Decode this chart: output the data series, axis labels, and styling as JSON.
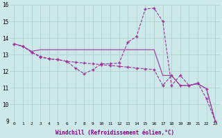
{
  "xlabel": "Windchill (Refroidissement éolien,°C)",
  "background_color": "#cce8e8",
  "grid_color": "#aacccc",
  "line_color": "#993399",
  "xlim": [
    -0.5,
    23.5
  ],
  "ylim": [
    9,
    16
  ],
  "yticks": [
    9,
    10,
    11,
    12,
    13,
    14,
    15,
    16
  ],
  "xticks": [
    0,
    1,
    2,
    3,
    4,
    5,
    6,
    7,
    8,
    9,
    10,
    11,
    12,
    13,
    14,
    15,
    16,
    17,
    18,
    19,
    20,
    21,
    22,
    23
  ],
  "line1_x": [
    0,
    1,
    2,
    3,
    4,
    5,
    6,
    7,
    8,
    9,
    10,
    11,
    12,
    13,
    14,
    15,
    16,
    17,
    18,
    19,
    20,
    21,
    22,
    23
  ],
  "line1_y": [
    13.65,
    13.5,
    13.15,
    12.9,
    12.75,
    12.7,
    12.6,
    12.2,
    11.85,
    12.1,
    12.45,
    12.45,
    12.5,
    13.75,
    14.1,
    15.75,
    15.8,
    15.0,
    11.15,
    11.75,
    11.15,
    11.3,
    10.35,
    9.0
  ],
  "line2_x": [
    0,
    1,
    2,
    3,
    4,
    5,
    6,
    7,
    8,
    9,
    10,
    11,
    12,
    13,
    14,
    15,
    16,
    17,
    18,
    19,
    20,
    21,
    22,
    23
  ],
  "line2_y": [
    13.65,
    13.5,
    13.15,
    12.85,
    12.75,
    12.7,
    12.6,
    12.55,
    12.5,
    12.45,
    12.4,
    12.35,
    12.3,
    12.25,
    12.2,
    12.15,
    12.1,
    11.15,
    11.75,
    11.15,
    11.15,
    11.25,
    10.95,
    9.0
  ],
  "line3_x": [
    0,
    1,
    2,
    3,
    4,
    5,
    6,
    7,
    8,
    9,
    10,
    11,
    12,
    13,
    14,
    15,
    16,
    17,
    18,
    19,
    20,
    21,
    22,
    23
  ],
  "line3_y": [
    13.65,
    13.5,
    13.2,
    13.3,
    13.3,
    13.3,
    13.3,
    13.3,
    13.3,
    13.3,
    13.3,
    13.3,
    13.3,
    13.3,
    13.3,
    13.3,
    13.3,
    11.75,
    11.75,
    11.15,
    11.15,
    11.25,
    10.95,
    9.0
  ]
}
